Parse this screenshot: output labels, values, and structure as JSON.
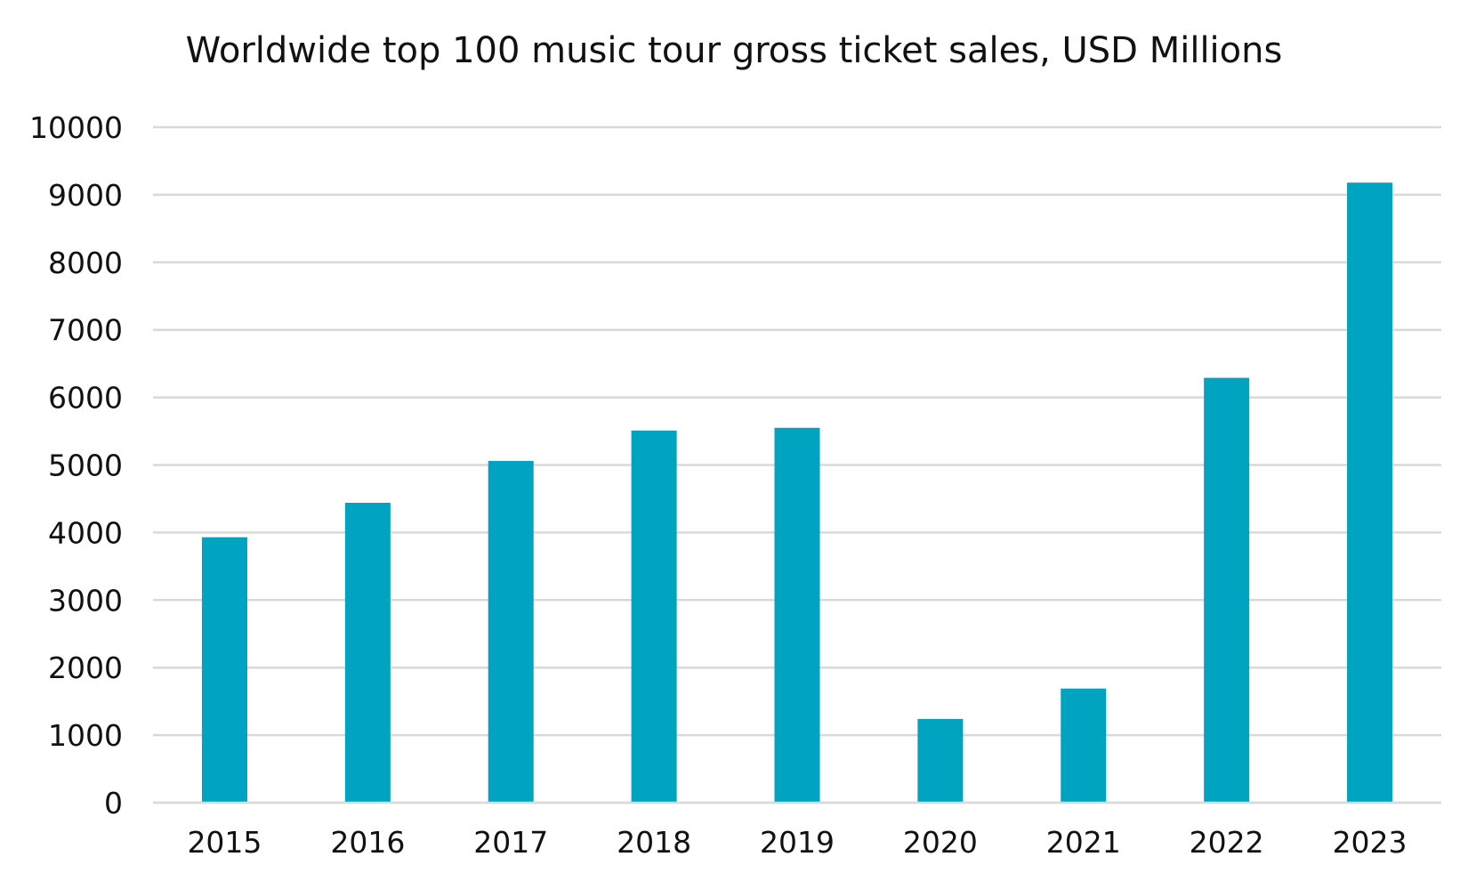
{
  "chart_data": {
    "type": "bar",
    "title": "Worldwide top 100 music tour gross ticket sales, USD Millions",
    "xlabel": "",
    "ylabel": "",
    "categories": [
      "2015",
      "2016",
      "2017",
      "2018",
      "2019",
      "2020",
      "2021",
      "2022",
      "2023"
    ],
    "values": [
      3930,
      4440,
      5060,
      5510,
      5550,
      1240,
      1690,
      6290,
      9180
    ],
    "ylim": [
      0,
      10000
    ],
    "yticks": [
      0,
      1000,
      2000,
      3000,
      4000,
      5000,
      6000,
      7000,
      8000,
      9000,
      10000
    ],
    "grid": true,
    "legend": "none",
    "bar_color": "#00a3c0",
    "grid_color": "#d9d9d9"
  }
}
